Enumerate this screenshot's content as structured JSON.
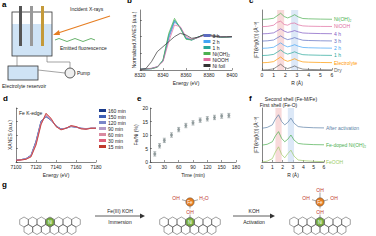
{
  "panel_a": {
    "panel": "a",
    "x_rays": "Incident X-rays",
    "fluorescence": "Emitted fluorescence",
    "reservoir": "Electrolyte reservoir",
    "pump": "Pump"
  },
  "chart_data": [
    {
      "panel": "b",
      "type": "line",
      "x_label": "Energy (eV)",
      "y_label": "Normalized XANES (a.u.)",
      "xlim": [
        8320,
        8400
      ],
      "xticks": [
        8320,
        8340,
        8360,
        8380,
        8400
      ],
      "ylim": [
        0,
        1.8
      ],
      "yticks": [
        0,
        0.5,
        1,
        1.5
      ],
      "tick_labels": "x",
      "legend": "bottom-right",
      "x": [
        8320,
        8325,
        8330,
        8335,
        8340,
        8345,
        8350,
        8355,
        8360,
        8365,
        8370,
        8375,
        8380,
        8385,
        8390,
        8395,
        8400
      ],
      "series": [
        {
          "name": "3 h",
          "color": "#5c6bc0",
          "values": [
            0.02,
            0.03,
            0.05,
            0.1,
            0.27,
            0.95,
            1.44,
            1.29,
            0.96,
            0.91,
            0.97,
            1.04,
            1.05,
            1.02,
            1.0,
            0.98,
            1.0
          ]
        },
        {
          "name": "2 h",
          "color": "#42a5f5",
          "values": [
            0.02,
            0.03,
            0.04,
            0.09,
            0.28,
            1.0,
            1.47,
            1.28,
            0.95,
            0.9,
            0.98,
            1.04,
            1.06,
            1.02,
            0.99,
            0.98,
            1.0
          ]
        },
        {
          "name": "1 h",
          "color": "#26a69a",
          "values": [
            0.02,
            0.03,
            0.04,
            0.09,
            0.29,
            1.05,
            1.5,
            1.27,
            0.94,
            0.9,
            0.98,
            1.05,
            1.06,
            1.02,
            0.99,
            0.98,
            1.0
          ]
        },
        {
          "name": "Ni(OH)₂",
          "color": "#4caf50",
          "values": [
            0.02,
            0.03,
            0.04,
            0.08,
            0.3,
            1.1,
            1.55,
            1.25,
            0.92,
            0.9,
            0.98,
            1.05,
            1.06,
            1.02,
            0.99,
            0.98,
            1.0
          ]
        },
        {
          "name": "NiOOH",
          "color": "#e06c9f",
          "values": [
            0.02,
            0.03,
            0.05,
            0.1,
            0.25,
            0.85,
            1.35,
            1.3,
            1.0,
            0.92,
            0.97,
            1.03,
            1.05,
            1.02,
            1.0,
            0.99,
            1.0
          ]
        },
        {
          "name": "Ni foil",
          "color": "#333333",
          "values": [
            0.02,
            0.04,
            0.25,
            0.55,
            0.7,
            0.85,
            1.0,
            1.1,
            1.05,
            0.95,
            0.98,
            1.05,
            1.03,
            1.0,
            0.99,
            1.0,
            1.0
          ]
        }
      ]
    },
    {
      "panel": "c",
      "type": "line",
      "x_label": "R (Å)",
      "y_label": "|FT(k³χ(k))| (Å⁻³)",
      "xlim": [
        0,
        6
      ],
      "xticks": [
        0,
        1,
        2,
        3,
        4,
        5,
        6
      ],
      "ylim": [
        0,
        8.3
      ],
      "tick_labels": "x",
      "legend": false,
      "bands": [
        {
          "from": 1.3,
          "to": 1.9,
          "color": "#f4c2c2"
        },
        {
          "from": 2.5,
          "to": 3.1,
          "color": "#c5d8f2"
        }
      ],
      "x": [
        0,
        0.5,
        1,
        1.3,
        1.6,
        1.9,
        2.2,
        2.5,
        2.8,
        3.1,
        3.5,
        4,
        5,
        6
      ],
      "series": [
        {
          "name": "Ni(OH)₂",
          "color": "#4caf50",
          "values": [
            7,
            7.04,
            7.16,
            7.5,
            7.85,
            7.4,
            7.2,
            7.4,
            7.65,
            7.35,
            7.12,
            7.08,
            7.04,
            7.02
          ]
        },
        {
          "name": "NiOOH",
          "color": "#e06c9f",
          "values": [
            6,
            6.04,
            6.2,
            6.6,
            6.75,
            6.3,
            6.2,
            6.45,
            6.5,
            6.25,
            6.1,
            6.06,
            6.03,
            6.02
          ]
        },
        {
          "name": "4 h",
          "color": "#7e57c2",
          "values": [
            5,
            5.04,
            5.14,
            5.42,
            5.7,
            5.38,
            5.2,
            5.3,
            5.45,
            5.28,
            5.12,
            5.08,
            5.04,
            5.02
          ]
        },
        {
          "name": "3 h",
          "color": "#5c6bc0",
          "values": [
            4,
            4.04,
            4.15,
            4.44,
            4.72,
            4.4,
            4.2,
            4.32,
            4.48,
            4.3,
            4.12,
            4.08,
            4.04,
            4.02
          ]
        },
        {
          "name": "2 h",
          "color": "#42a5f5",
          "values": [
            3,
            3.04,
            3.15,
            3.45,
            3.75,
            3.4,
            3.2,
            3.33,
            3.5,
            3.3,
            3.12,
            3.08,
            3.04,
            3.02
          ]
        },
        {
          "name": "1 h",
          "color": "#26a69a",
          "values": [
            2,
            2.04,
            2.16,
            2.46,
            2.78,
            2.4,
            2.2,
            2.34,
            2.52,
            2.3,
            2.12,
            2.08,
            2.04,
            2.02
          ]
        },
        {
          "name": "Electrolyte",
          "color": "#ff9800",
          "values": [
            1,
            1.04,
            1.16,
            1.48,
            1.8,
            1.4,
            1.2,
            1.36,
            1.56,
            1.32,
            1.12,
            1.08,
            1.04,
            1.02
          ]
        },
        {
          "name": "Dry",
          "color": "#616161",
          "values": [
            0,
            0.04,
            0.16,
            0.48,
            0.8,
            0.4,
            0.2,
            0.36,
            0.56,
            0.32,
            0.12,
            0.08,
            0.04,
            0.02
          ]
        }
      ]
    },
    {
      "panel": "d",
      "type": "line",
      "title": "Fe K-edge",
      "x_label": "Energy (eV)",
      "y_label": "XANES (a.u.)",
      "xlim": [
        7100,
        7180
      ],
      "xticks": [
        7100,
        7120,
        7140,
        7160,
        7180
      ],
      "ylim": [
        0,
        1.6
      ],
      "yticks": [
        0,
        0.4,
        0.8,
        1.2,
        1.6
      ],
      "tick_labels": "x",
      "legend": "right",
      "x": [
        7100,
        7105,
        7110,
        7115,
        7120,
        7125,
        7130,
        7135,
        7140,
        7145,
        7150,
        7155,
        7160,
        7165,
        7170,
        7175,
        7180
      ],
      "series": [
        {
          "name": "160 min",
          "color": "#1a3a8a",
          "values": [
            0.05,
            0.07,
            0.1,
            0.2,
            0.62,
            1.21,
            1.34,
            1.24,
            1.07,
            0.98,
            1.0,
            1.05,
            1.03,
            1.0,
            0.99,
            1.0,
            1.0
          ]
        },
        {
          "name": "150 min",
          "color": "#3f5fb5",
          "values": [
            0.05,
            0.07,
            0.1,
            0.2,
            0.61,
            1.2,
            1.35,
            1.24,
            1.07,
            0.98,
            1.0,
            1.05,
            1.03,
            1.0,
            0.99,
            1.0,
            1.0
          ]
        },
        {
          "name": "120 min",
          "color": "#7a86c8",
          "values": [
            0.05,
            0.07,
            0.1,
            0.19,
            0.59,
            1.18,
            1.36,
            1.25,
            1.07,
            0.97,
            1.0,
            1.06,
            1.04,
            1.0,
            0.98,
            1.0,
            1.0
          ]
        },
        {
          "name": "90 min",
          "color": "#b59bc6",
          "values": [
            0.05,
            0.07,
            0.09,
            0.18,
            0.57,
            1.16,
            1.38,
            1.26,
            1.06,
            0.97,
            1.0,
            1.06,
            1.04,
            0.99,
            0.98,
            1.0,
            1.0
          ]
        },
        {
          "name": "60 min",
          "color": "#d98aa0",
          "values": [
            0.05,
            0.06,
            0.09,
            0.17,
            0.55,
            1.14,
            1.4,
            1.27,
            1.06,
            0.96,
            1.0,
            1.07,
            1.04,
            0.99,
            0.98,
            1.0,
            1.0
          ]
        },
        {
          "name": "30 min",
          "color": "#e0607a",
          "values": [
            0.05,
            0.06,
            0.08,
            0.16,
            0.52,
            1.12,
            1.42,
            1.28,
            1.05,
            0.96,
            1.0,
            1.07,
            1.05,
            0.99,
            0.97,
            1.0,
            1.0
          ]
        },
        {
          "name": "15 min",
          "color": "#c0392b",
          "values": [
            0.05,
            0.06,
            0.08,
            0.15,
            0.5,
            1.1,
            1.45,
            1.3,
            1.05,
            0.95,
            1.0,
            1.08,
            1.05,
            0.98,
            0.97,
            1.0,
            1.0
          ]
        }
      ]
    },
    {
      "panel": "e",
      "type": "scatter",
      "x_label": "Time (min)",
      "y_label": "Fe/Ni (%)",
      "xlim": [
        0,
        180
      ],
      "xticks": [
        0,
        30,
        60,
        90,
        120,
        150,
        180
      ],
      "ylim": [
        0,
        20
      ],
      "yticks": [
        0,
        5,
        10,
        15,
        20
      ],
      "marker": "circle",
      "color": "#7f8c8d",
      "x": [
        10,
        20,
        30,
        45,
        60,
        75,
        90,
        105,
        120,
        135,
        150,
        165
      ],
      "values": [
        3,
        6,
        8,
        10,
        12,
        13.5,
        14.5,
        15.5,
        16,
        16.5,
        17,
        17.2
      ],
      "errors": [
        0.8,
        0.8,
        0.8,
        0.8,
        0.8,
        0.8,
        0.8,
        0.8,
        0.8,
        0.8,
        0.8,
        0.8
      ]
    },
    {
      "panel": "f",
      "type": "line",
      "x_label": "R (Å)",
      "y_label": "|FT(k³χ(k))| (Å⁻³)",
      "xlim": [
        0,
        6
      ],
      "xticks": [
        0,
        1,
        2,
        3,
        4,
        5,
        6
      ],
      "ylim": [
        0,
        3.2
      ],
      "tick_labels": "x",
      "legend": false,
      "bands": [
        {
          "from": 1.3,
          "to": 1.9,
          "color": "#f4c2c2",
          "label": "First shell (Fe-O)"
        },
        {
          "from": 2.5,
          "to": 3.1,
          "color": "#c5d8f2",
          "label": "Second shell (Fe-M/Fe)"
        }
      ],
      "x": [
        0,
        0.5,
        1,
        1.3,
        1.6,
        1.9,
        2.2,
        2.5,
        2.8,
        3.1,
        3.5,
        4,
        5,
        6
      ],
      "series": [
        {
          "name": "After activation",
          "color": "#5b7fa6",
          "values": [
            2,
            2.05,
            2.2,
            2.55,
            2.8,
            2.4,
            2.2,
            2.35,
            2.6,
            2.3,
            2.1,
            2.06,
            2.03,
            2.02
          ]
        },
        {
          "name": "Fe-doped Ni(OH)₂",
          "color": "#4caf50",
          "values": [
            1,
            1.05,
            1.2,
            1.55,
            1.8,
            1.4,
            1.2,
            1.35,
            1.6,
            1.3,
            1.1,
            1.06,
            1.03,
            1.02
          ]
        },
        {
          "name": "FeOOH",
          "color": "#9ccc65",
          "values": [
            0,
            0.05,
            0.2,
            0.6,
            0.9,
            0.45,
            0.25,
            0.5,
            0.7,
            0.35,
            0.12,
            0.08,
            0.04,
            0.02
          ]
        }
      ]
    }
  ],
  "panel_g": {
    "panel": "g",
    "structures": [
      {
        "atoms": [
          "Ni"
        ]
      },
      {
        "atoms": [
          "Ni",
          "OH",
          "Fe",
          "OH",
          "H₂O"
        ]
      },
      {
        "atoms": [
          "Ni",
          "OH",
          "Fe",
          "OH",
          "OH",
          "OH"
        ]
      }
    ],
    "steps": [
      {
        "above": "Fe(III) KOH",
        "below": "Immersion"
      },
      {
        "above": "KOH",
        "below": "Activation"
      }
    ]
  }
}
